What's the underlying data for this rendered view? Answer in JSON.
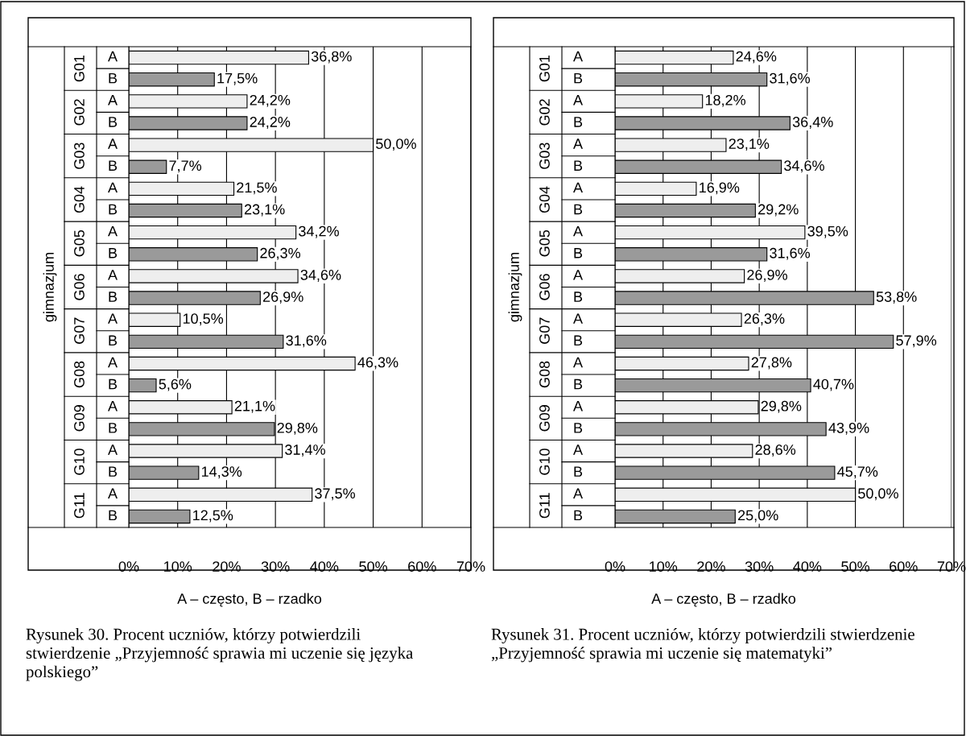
{
  "chart_data": [
    {
      "type": "bar",
      "orientation": "horizontal",
      "ylabel": "gimnazjum",
      "categories": [
        "G01",
        "G02",
        "G03",
        "G04",
        "G05",
        "G06",
        "G07",
        "G08",
        "G09",
        "G10",
        "G11"
      ],
      "series": [
        {
          "name": "A",
          "color": "#eeeeee",
          "values": [
            36.8,
            24.2,
            50.0,
            21.5,
            34.2,
            34.6,
            10.5,
            46.3,
            21.1,
            31.4,
            37.5
          ],
          "value_labels": [
            "36,8%",
            "24,2%",
            "50,0%",
            "21,5%",
            "34,2%",
            "34,6%",
            "10,5%",
            "46,3%",
            "21,1%",
            "31,4%",
            "37,5%"
          ]
        },
        {
          "name": "B",
          "color": "#9a9a9a",
          "values": [
            17.5,
            24.2,
            7.7,
            23.1,
            26.3,
            26.9,
            31.6,
            5.6,
            29.8,
            14.3,
            12.5
          ],
          "value_labels": [
            "17,5%",
            "24,2%",
            "7,7%",
            "23,1%",
            "26,3%",
            "26,9%",
            "31,6%",
            "5,6%",
            "29,8%",
            "14,3%",
            "12,5%"
          ]
        }
      ],
      "xlim": [
        0,
        70
      ],
      "xticks": [
        {
          "value": 0,
          "label": "0%"
        },
        {
          "value": 10,
          "label": "10%"
        },
        {
          "value": 20,
          "label": "20%"
        },
        {
          "value": 30,
          "label": "30%"
        },
        {
          "value": 40,
          "label": "40%"
        },
        {
          "value": 50,
          "label": "50%"
        },
        {
          "value": 60,
          "label": "60%"
        },
        {
          "value": 70,
          "label": "70%"
        }
      ],
      "grid": "x",
      "legend": "left",
      "annotations": [
        "A – często, B – rzadko",
        "Rysunek 30. Procent uczniów, którzy potwierdzili stwierdzenie „Przyjemność sprawia mi uczenie się języka polskiego”"
      ]
    },
    {
      "type": "bar",
      "orientation": "horizontal",
      "ylabel": "gimnazjum",
      "categories": [
        "G01",
        "G02",
        "G03",
        "G04",
        "G05",
        "G06",
        "G07",
        "G08",
        "G09",
        "G10",
        "G11"
      ],
      "series": [
        {
          "name": "A",
          "color": "#eeeeee",
          "values": [
            24.6,
            18.2,
            23.1,
            16.9,
            39.5,
            26.9,
            26.3,
            27.8,
            29.8,
            28.6,
            50.0
          ],
          "value_labels": [
            "24,6%",
            "18,2%",
            "23,1%",
            "16,9%",
            "39,5%",
            "26,9%",
            "26,3%",
            "27,8%",
            "29,8%",
            "28,6%",
            "50,0%"
          ]
        },
        {
          "name": "B",
          "color": "#9a9a9a",
          "values": [
            31.6,
            36.4,
            34.6,
            29.2,
            31.6,
            53.8,
            57.9,
            40.7,
            43.9,
            45.7,
            25.0
          ],
          "value_labels": [
            "31,6%",
            "36,4%",
            "34,6%",
            "29,2%",
            "31,6%",
            "53,8%",
            "57,9%",
            "40,7%",
            "43,9%",
            "45,7%",
            "25,0%"
          ]
        }
      ],
      "xlim": [
        0,
        70
      ],
      "xticks": [
        {
          "value": 0,
          "label": "0%"
        },
        {
          "value": 10,
          "label": "10%"
        },
        {
          "value": 20,
          "label": "20%"
        },
        {
          "value": 30,
          "label": "30%"
        },
        {
          "value": 40,
          "label": "40%"
        },
        {
          "value": 50,
          "label": "50%"
        },
        {
          "value": 60,
          "label": "60%"
        },
        {
          "value": 70,
          "label": "70%"
        }
      ],
      "grid": "x",
      "legend": "left",
      "annotations": [
        "A – często, B – rzadko",
        "Rysunek 31. Procent uczniów, którzy potwierdzili stwierdzenie „Przyjemność sprawia mi uczenie się matematyki”"
      ]
    }
  ]
}
